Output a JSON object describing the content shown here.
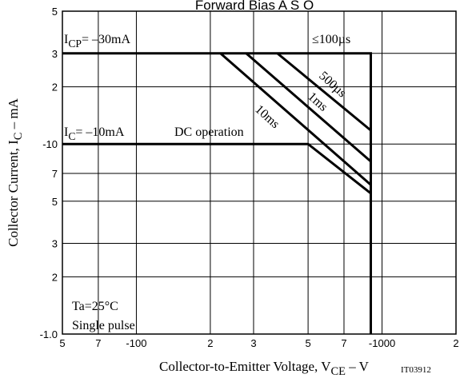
{
  "chart_data": {
    "type": "line",
    "title": "Forward Bias A S O",
    "x_label": {
      "parts": [
        "Collector-to-Emitter Voltage, V",
        "CE",
        " – V"
      ]
    },
    "y_label": {
      "parts": [
        "Collector Current, I",
        "C",
        " – mA"
      ]
    },
    "figure_id": "IT03912",
    "log_x": true,
    "log_y": true,
    "grid": true,
    "xlim": [
      -50,
      -2000
    ],
    "ylim": [
      -1,
      -50
    ],
    "xticks": [
      {
        "value": -50,
        "label": "5"
      },
      {
        "value": -70,
        "label": "7"
      },
      -100,
      {
        "value": -200,
        "label": "2"
      },
      {
        "value": -300,
        "label": "3"
      },
      {
        "value": -500,
        "label": "5"
      },
      {
        "value": -700,
        "label": "7"
      },
      -1000,
      {
        "value": -2000,
        "label": "2"
      }
    ],
    "yticks": [
      {
        "value": -1,
        "label": "-1.0"
      },
      {
        "value": -2,
        "label": "2"
      },
      {
        "value": -3,
        "label": "3"
      },
      {
        "value": -5,
        "label": "5"
      },
      {
        "value": -7,
        "label": "7"
      },
      -10,
      {
        "value": -20,
        "label": "2"
      },
      {
        "value": -30,
        "label": "3"
      },
      {
        "value": -50,
        "label": "5"
      }
    ],
    "series": [
      {
        "name": "≤100µs",
        "color": "#000000",
        "x": [
          -50,
          -900,
          -900
        ],
        "values": [
          -30,
          -30,
          -1
        ]
      },
      {
        "name": "500µs",
        "color": "#000000",
        "x": [
          -375,
          -900
        ],
        "values": [
          -30,
          -11.8
        ]
      },
      {
        "name": "1ms",
        "color": "#000000",
        "x": [
          -280,
          -900
        ],
        "values": [
          -30,
          -8.1
        ]
      },
      {
        "name": "10ms",
        "color": "#000000",
        "x": [
          -220,
          -900
        ],
        "values": [
          -30,
          -6.1
        ]
      },
      {
        "name": "DC operation",
        "color": "#000000",
        "x": [
          -50,
          -500,
          -900
        ],
        "values": [
          -10,
          -10,
          -5.5
        ]
      }
    ],
    "annotations": [
      {
        "parts": [
          "I",
          "CP",
          "= –30mA"
        ]
      },
      {
        "parts": [
          "I",
          "C",
          "= –10mA"
        ]
      },
      {
        "text": "Ta=25°C"
      },
      {
        "text": "Single pulse"
      }
    ]
  }
}
